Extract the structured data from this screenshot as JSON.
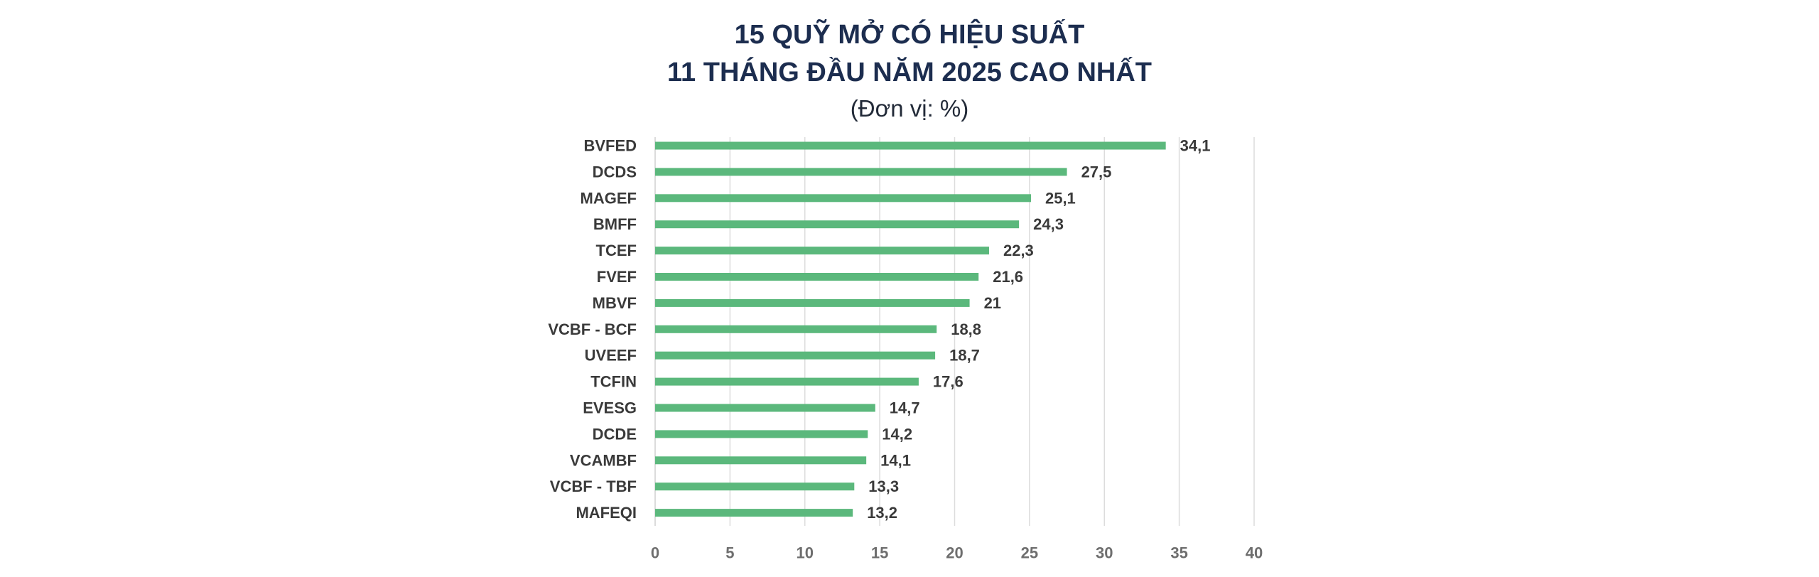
{
  "chart_data": {
    "type": "bar",
    "orientation": "horizontal",
    "title_lines": [
      "15 QUỸ MỞ CÓ HIỆU SUẤT",
      "11 THÁNG ĐẦU NĂM 2025 CAO NHẤT"
    ],
    "subtitle": "(Đơn vị: %)",
    "categories": [
      "BVFED",
      "DCDS",
      "MAGEF",
      "BMFF",
      "TCEF",
      "FVEF",
      "MBVF",
      "VCBF - BCF",
      "UVEEF",
      "TCFIN",
      "EVESG",
      "DCDE",
      "VCAMBF",
      "VCBF - TBF",
      "MAFEQI"
    ],
    "values": [
      34.1,
      27.5,
      25.1,
      24.3,
      22.3,
      21.6,
      21,
      18.8,
      18.7,
      17.6,
      14.7,
      14.2,
      14.1,
      13.3,
      13.2
    ],
    "value_labels": [
      "34,1",
      "27,5",
      "25,1",
      "24,3",
      "22,3",
      "21,6",
      "21",
      "18,8",
      "18,7",
      "17,6",
      "14,7",
      "14,2",
      "14,1",
      "13,3",
      "13,2"
    ],
    "xlim": [
      0,
      40
    ],
    "xticks": [
      0,
      5,
      10,
      15,
      20,
      25,
      30,
      35,
      40
    ],
    "grid": true,
    "bar_color": "#5bb87c",
    "grid_color": "#dcdcdc"
  }
}
